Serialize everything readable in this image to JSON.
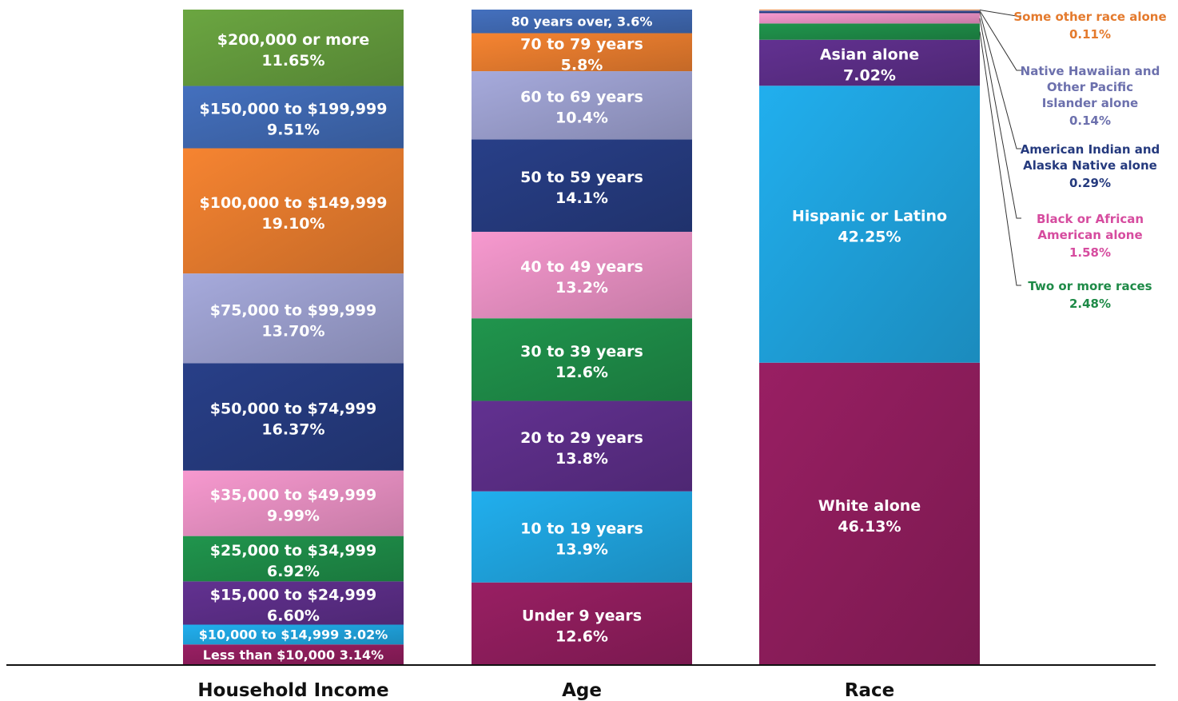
{
  "chart_data": {
    "type": "bar",
    "stacked": true,
    "percent_scale": true,
    "ylim": [
      0,
      100
    ],
    "grid": false,
    "legend": "none",
    "categories": [
      "Household Income",
      "Age",
      "Race"
    ],
    "stacks": [
      {
        "category": "Household Income",
        "segments": [
          {
            "label": "Less than $10,000",
            "value_text": "3.14%",
            "value": 3.14,
            "inline": true,
            "color": "#8e1d5c"
          },
          {
            "label": "$10,000 to $14,999",
            "value_text": "3.02%",
            "value": 3.02,
            "inline": true,
            "color": "#1fa2dc"
          },
          {
            "label": "$15,000 to $24,999",
            "value_text": "6.60%",
            "value": 6.6,
            "color": "#5b2d86"
          },
          {
            "label": "$25,000 to $34,999",
            "value_text": "6.92%",
            "value": 6.92,
            "color": "#1e8a47"
          },
          {
            "label": "$35,000 to $49,999",
            "value_text": "9.99%",
            "value": 9.99,
            "color": "#e58ec0"
          },
          {
            "label": "$50,000 to $74,999",
            "value_text": "16.37%",
            "value": 16.37,
            "color": "#253a7e"
          },
          {
            "label": "$75,000 to $99,999",
            "value_text": "13.70%",
            "value": 13.7,
            "color": "#9a9dcc"
          },
          {
            "label": "$100,000 to $149,999",
            "value_text": "19.10%",
            "value": 19.1,
            "color": "#e47a2d"
          },
          {
            "label": "$150,000 to $199,999",
            "value_text": "9.51%",
            "value": 9.51,
            "color": "#3f68b0"
          },
          {
            "label": "$200,000 or more",
            "value_text": "11.65%",
            "value": 11.65,
            "color": "#639a3c"
          }
        ]
      },
      {
        "category": "Age",
        "segments": [
          {
            "label": "Under 9 years",
            "value_text": "12.6%",
            "value": 12.6,
            "color": "#8e1d5c"
          },
          {
            "label": "10 to 19 years",
            "value_text": "13.9%",
            "value": 13.9,
            "color": "#1fa2dc"
          },
          {
            "label": "20 to 29 years",
            "value_text": "13.8%",
            "value": 13.8,
            "color": "#5b2d86"
          },
          {
            "label": "30 to 39 years",
            "value_text": "12.6%",
            "value": 12.6,
            "color": "#1e8a47"
          },
          {
            "label": "40 to 49 years",
            "value_text": "13.2%",
            "value": 13.2,
            "color": "#e58ec0"
          },
          {
            "label": "50 to 59 years",
            "value_text": "14.1%",
            "value": 14.1,
            "color": "#253a7e"
          },
          {
            "label": "60 to 69 years",
            "value_text": "10.4%",
            "value": 10.4,
            "color": "#9a9dcc"
          },
          {
            "label": "70 to 79 years",
            "value_text": "5.8%",
            "value": 5.8,
            "color": "#e47a2d"
          },
          {
            "label": "80 years over,",
            "value_text": "3.6%",
            "value": 3.6,
            "inline": true,
            "color": "#3f68b0"
          }
        ]
      },
      {
        "category": "Race",
        "segments": [
          {
            "label": "White alone",
            "value_text": "46.13%",
            "value": 46.13,
            "color": "#8e1d5c"
          },
          {
            "label": "Hispanic or Latino",
            "value_text": "42.25%",
            "value": 42.25,
            "color": "#1fa2dc"
          },
          {
            "label": "Asian alone",
            "value_text": "7.02%",
            "value": 7.02,
            "color": "#5b2d86"
          },
          {
            "label": "Two or more races",
            "value_text": "2.48%",
            "value": 2.48,
            "callout": true,
            "color": "#1e8a47"
          },
          {
            "label": "Black or African American alone",
            "value_text": "1.58%",
            "value": 1.58,
            "callout": true,
            "color": "#e58ec0"
          },
          {
            "label": "American Indian and Alaska Native alone",
            "value_text": "0.29%",
            "value": 0.29,
            "callout": true,
            "color": "#253a7e"
          },
          {
            "label": "Native Hawaiian and Other Pacific Islander alone",
            "value_text": "0.14%",
            "value": 0.14,
            "callout": true,
            "color": "#9a9dcc"
          },
          {
            "label": "Some other race alone",
            "value_text": "0.11%",
            "value": 0.11,
            "callout": true,
            "color": "#e47a2d"
          }
        ]
      }
    ],
    "callout_text_colors": {
      "Two or more races": "#1e8a47",
      "Black or African American alone": "#d64c9f",
      "American Indian and Alaska Native alone": "#253a7e",
      "Native Hawaiian and Other Pacific Islander alone": "#6c70ad",
      "Some other race alone": "#e47a2d"
    }
  }
}
